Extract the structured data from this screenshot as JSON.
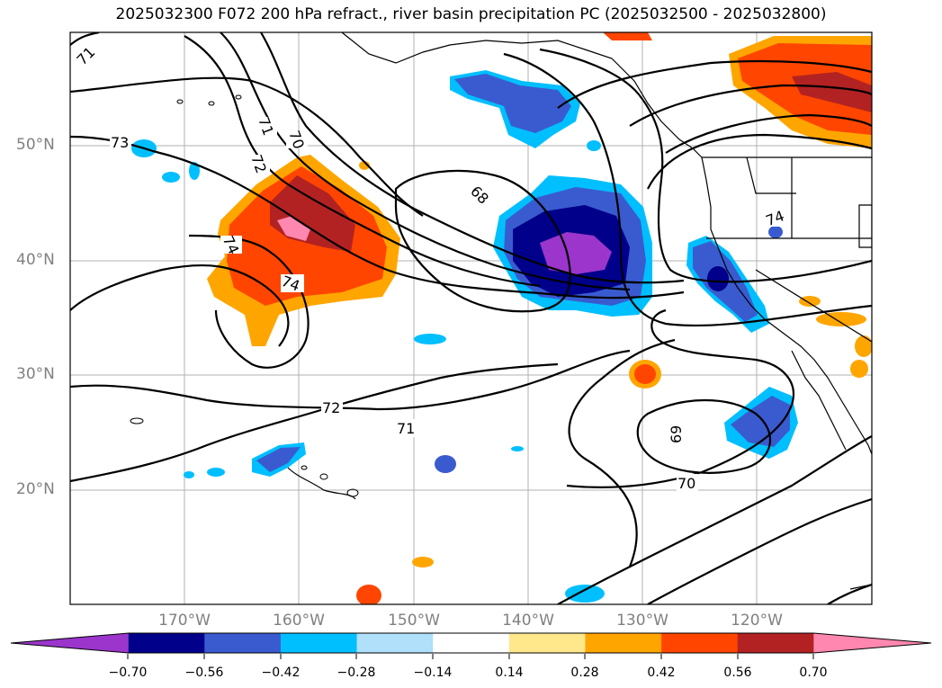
{
  "title": "2025032300 F072 200 hPa refract., river basin precipitation PC (2025032500 - 2025032800)",
  "lat_labels": [
    "50°N",
    "40°N",
    "30°N",
    "20°N"
  ],
  "lon_labels": [
    "170°W",
    "160°W",
    "150°W",
    "140°W",
    "130°W",
    "120°W"
  ],
  "contour_labels": [
    "71",
    "73",
    "71",
    "70",
    "72",
    "74",
    "74",
    "68",
    "72",
    "71",
    "69",
    "70",
    "74"
  ],
  "colorbar": {
    "colors": [
      "#9b35cc",
      "#00008b",
      "#3a5bcf",
      "#00bfff",
      "#b0e0fa",
      "#ffffff",
      "#ffe88c",
      "#ffa500",
      "#ff4500",
      "#b22222",
      "#ff87b0"
    ],
    "ticks": [
      "−0.70",
      "−0.56",
      "−0.42",
      "−0.28",
      "−0.14",
      "0.14",
      "0.28",
      "0.42",
      "0.56",
      "0.70"
    ]
  }
}
